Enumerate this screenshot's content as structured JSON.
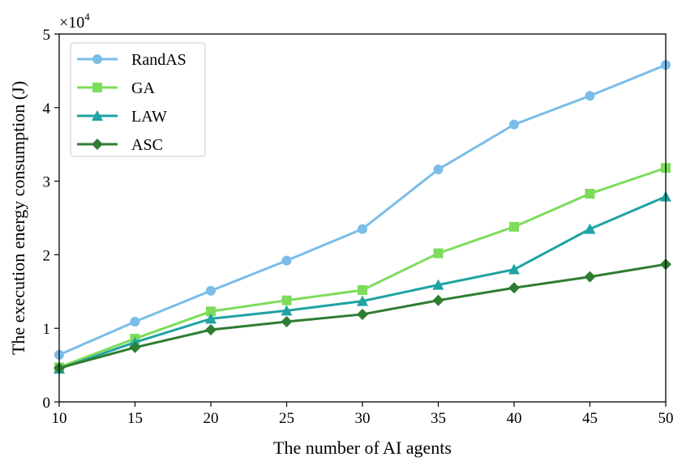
{
  "chart_data": {
    "type": "line",
    "xlabel": "The number of AI agents",
    "ylabel": "The execution energy consumption (J)",
    "y_multiplier_label": "×10",
    "y_multiplier_exponent": "4",
    "x": [
      10,
      15,
      20,
      25,
      30,
      35,
      40,
      45,
      50
    ],
    "xlim": [
      10,
      50
    ],
    "ylim": [
      0,
      50000
    ],
    "x_ticks": [
      "10",
      "15",
      "20",
      "25",
      "30",
      "35",
      "40",
      "45",
      "50"
    ],
    "y_ticks": [
      "0",
      "1",
      "2",
      "3",
      "4",
      "5"
    ],
    "y_tick_values": [
      0,
      10000,
      20000,
      30000,
      40000,
      50000
    ],
    "grid": false,
    "legend_position": "top-left",
    "series": [
      {
        "name": "RandAS",
        "marker": "circle",
        "color": "#7abde8",
        "values": [
          6400,
          10900,
          15100,
          19200,
          23500,
          31600,
          37700,
          41600,
          45800
        ]
      },
      {
        "name": "GA",
        "marker": "square",
        "color": "#7ddc5a",
        "values": [
          4700,
          8600,
          12300,
          13800,
          15200,
          20200,
          23800,
          28300,
          31800
        ]
      },
      {
        "name": "LAW",
        "marker": "triangle",
        "color": "#1fa3a3",
        "values": [
          4500,
          8100,
          11300,
          12400,
          13700,
          15900,
          18000,
          23500,
          27900
        ]
      },
      {
        "name": "ASC",
        "marker": "diamond",
        "color": "#2e7d32",
        "values": [
          4600,
          7400,
          9800,
          10900,
          11900,
          13800,
          15500,
          17000,
          18700
        ]
      }
    ]
  }
}
